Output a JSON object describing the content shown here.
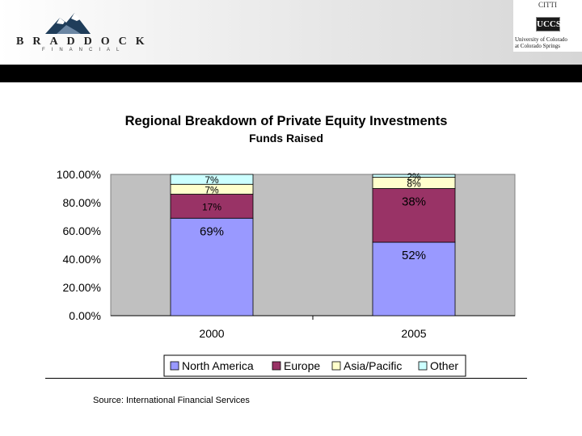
{
  "header": {
    "logo_text": "BRADDOCK",
    "logo_subtext": "FINANCIAL",
    "partner_top": "CITTI",
    "partner_badge": "UCCS",
    "partner_line1": "University of Colorado",
    "partner_line2": "at Colorado Springs"
  },
  "chart_data": {
    "type": "bar",
    "stacked": true,
    "title": "Regional Breakdown of Private Equity Investments",
    "subtitle": "Funds Raised",
    "categories": [
      "2000",
      "2005"
    ],
    "ylim": [
      0,
      100
    ],
    "yticks": [
      "0.00%",
      "20.00%",
      "40.00%",
      "60.00%",
      "80.00%",
      "100.00%"
    ],
    "legend_position": "bottom",
    "series": [
      {
        "name": "North America",
        "values": [
          69,
          52
        ],
        "labels": [
          "69%",
          "52%"
        ],
        "color": "#9999ff"
      },
      {
        "name": "Europe",
        "values": [
          17,
          38
        ],
        "labels": [
          "17%",
          "38%"
        ],
        "color": "#993366"
      },
      {
        "name": "Asia/Pacific",
        "values": [
          7,
          8
        ],
        "labels": [
          "7%",
          "8%"
        ],
        "color": "#ffffcc"
      },
      {
        "name": "Other",
        "values": [
          7,
          2
        ],
        "labels": [
          "7%",
          "2%"
        ],
        "color": "#ccffff"
      }
    ],
    "plot_background": "#c0c0c0"
  },
  "footer": {
    "source": "Source: International Financial Services"
  }
}
